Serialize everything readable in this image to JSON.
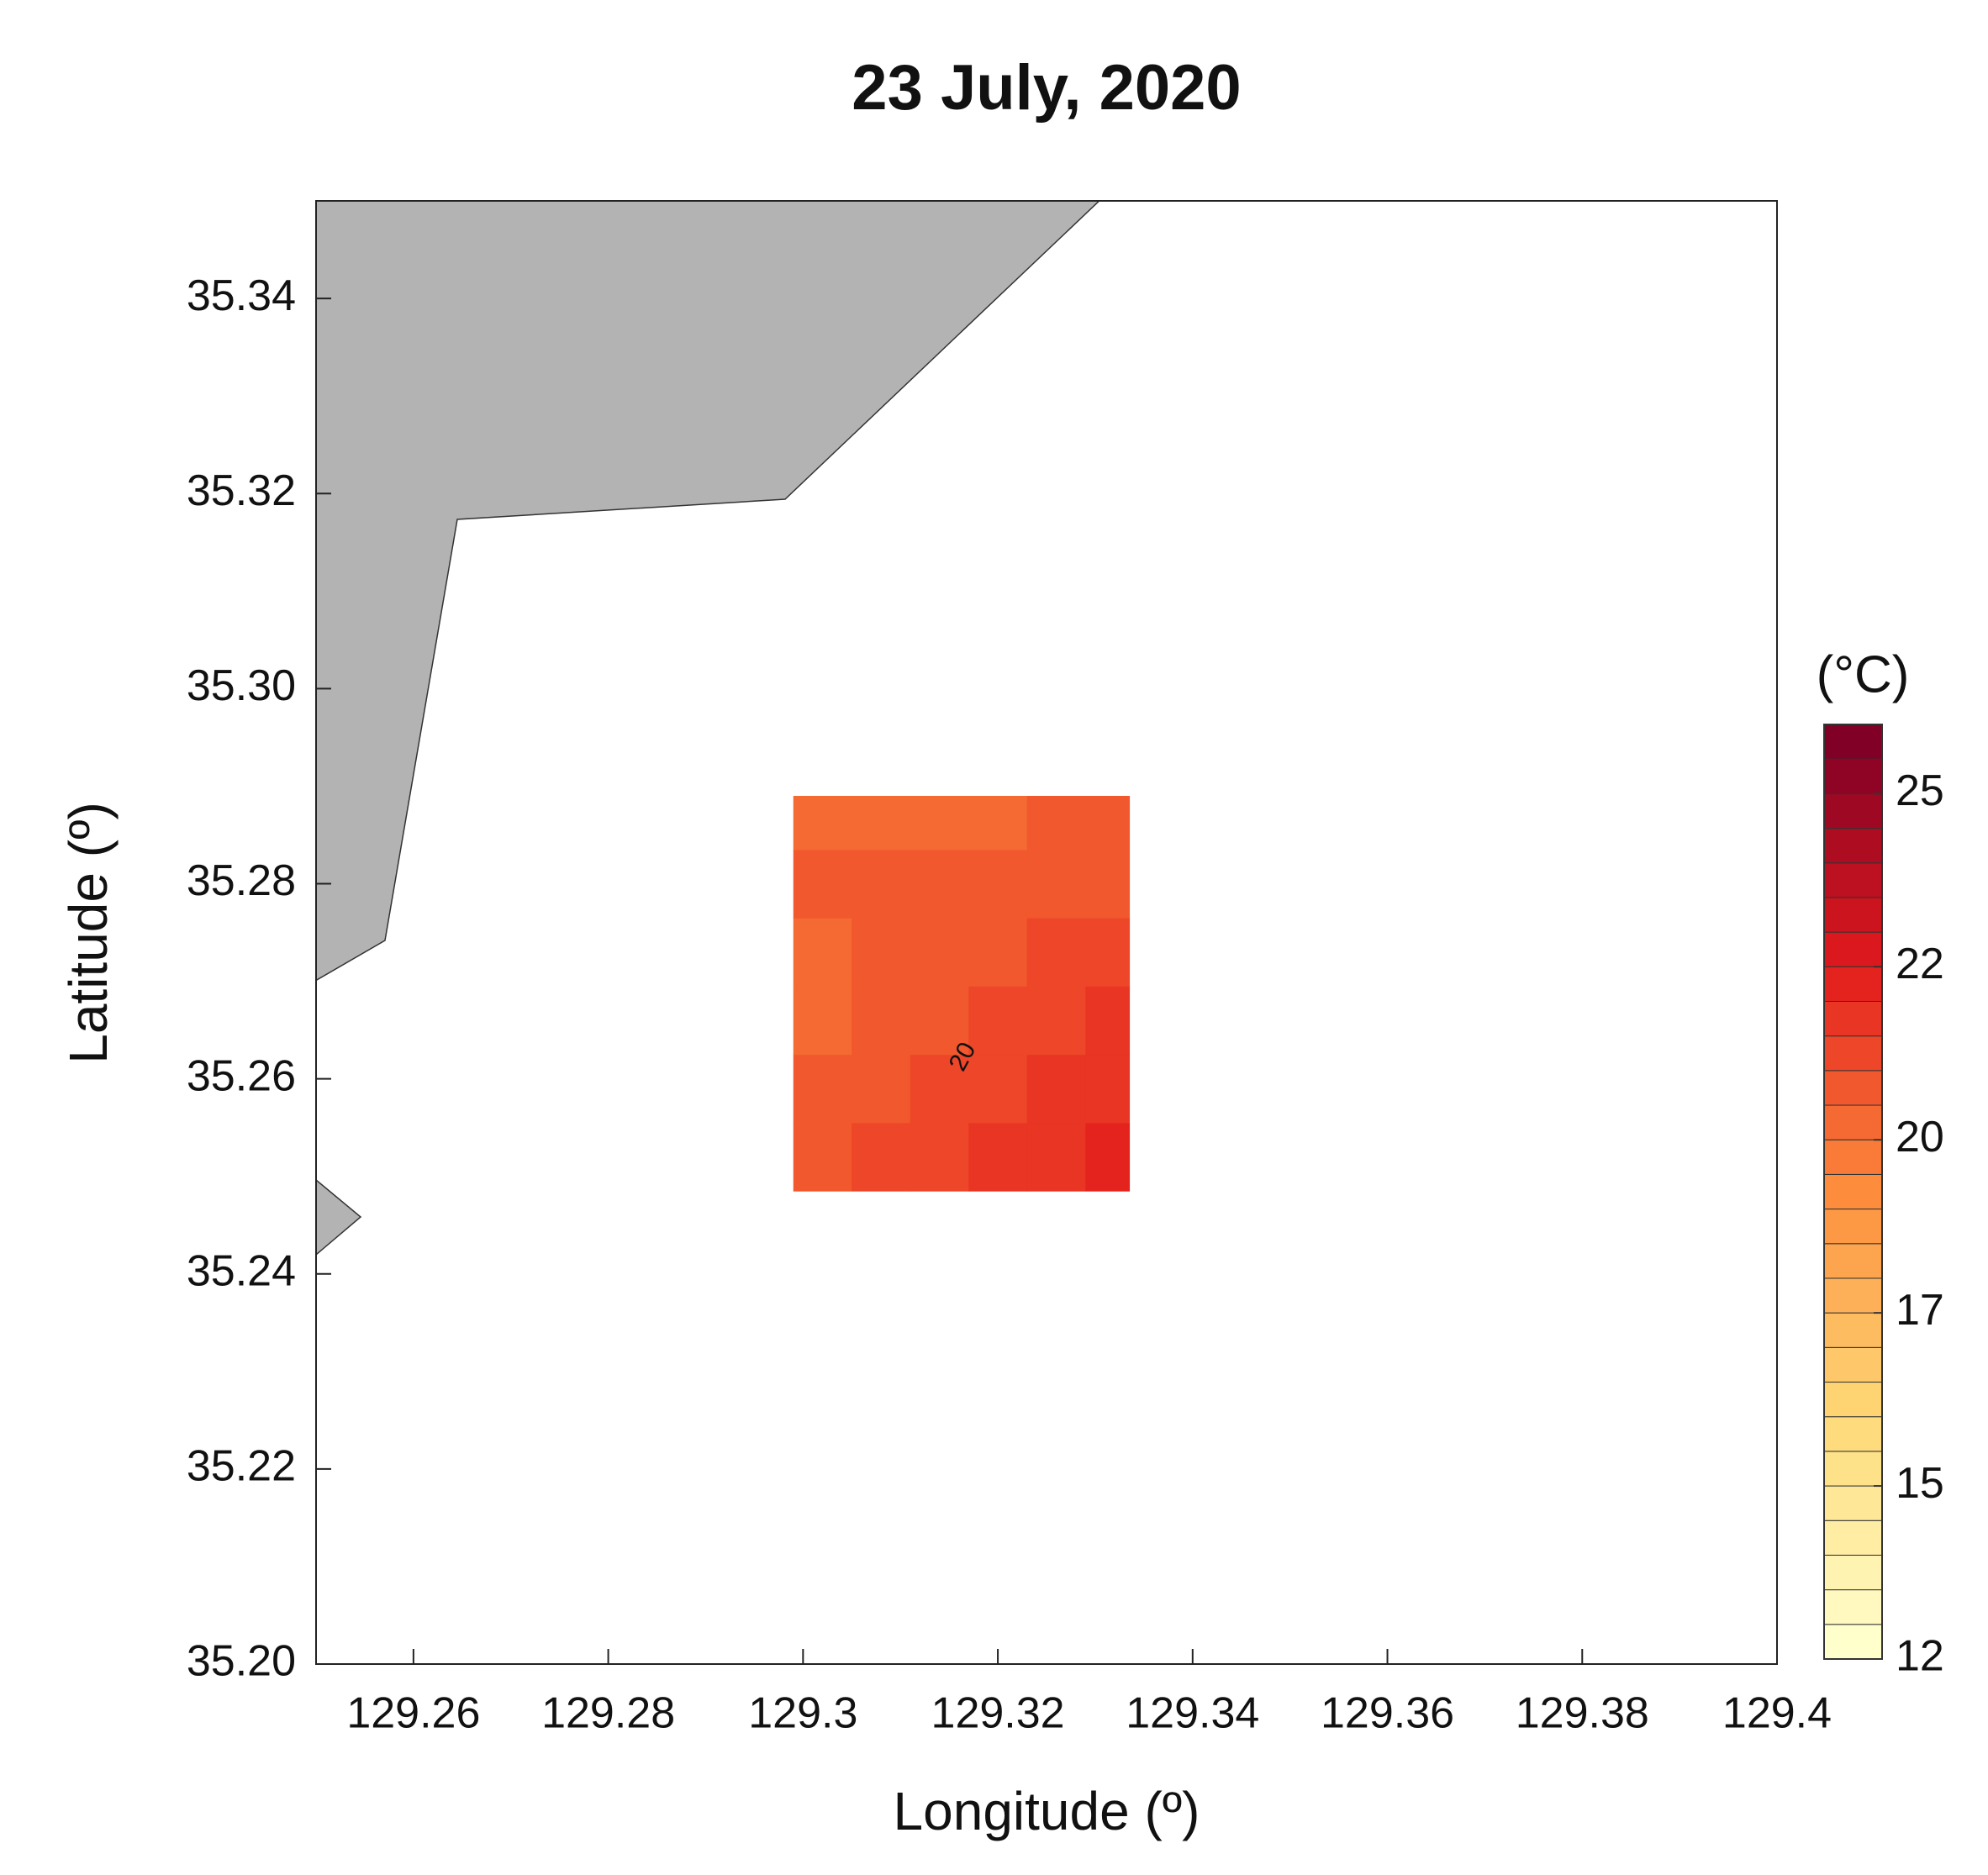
{
  "chart_data": {
    "type": "contour",
    "title": "23 July, 2020",
    "x_label": "Longitude (º)",
    "y_label": "Latitude (º)",
    "xlim": [
      129.25,
      129.4
    ],
    "xticks": [
      129.26,
      129.28,
      129.3,
      129.32,
      129.34,
      129.36,
      129.38,
      129.4
    ],
    "ylim": [
      35.2,
      35.35
    ],
    "yticks": [
      {
        "value": 35.2,
        "label": "35.20"
      },
      35.22,
      35.24,
      35.26,
      35.28,
      {
        "value": 35.3,
        "label": "35.30"
      },
      35.32,
      35.34
    ],
    "x_edges": [
      129.299,
      129.305,
      129.311,
      129.317,
      129.323,
      129.329,
      129.3335
    ],
    "y_edges": [
      35.2485,
      35.2555,
      35.2625,
      35.2695,
      35.2765,
      35.2835,
      35.289
    ],
    "z": [
      [
        20,
        20.5,
        20.5,
        21,
        21,
        21.5
      ],
      [
        20,
        20,
        20.5,
        20.5,
        21,
        21
      ],
      [
        19.5,
        20,
        20,
        20.5,
        20.5,
        21
      ],
      [
        19.5,
        20,
        20,
        20,
        20.5,
        20.5
      ],
      [
        20,
        20,
        20,
        20,
        20,
        20
      ],
      [
        19.5,
        19.5,
        19.5,
        19.5,
        20,
        20
      ]
    ],
    "contour_levels": [
      20
    ],
    "land_color": "#b3b3b3",
    "colormap": [
      "#ffffcc",
      "#fed976",
      "#fd8d3c",
      "#e31a1c",
      "#800026"
    ],
    "colorbar": {
      "label": "(°C)",
      "clim": [
        12,
        25.5
      ],
      "step": 0.5,
      "ticks": [
        12,
        {
          "value": 14.5,
          "label": "15"
        },
        17,
        {
          "value": 19.5,
          "label": "20"
        },
        22,
        {
          "value": 24.5,
          "label": "25"
        }
      ]
    }
  }
}
